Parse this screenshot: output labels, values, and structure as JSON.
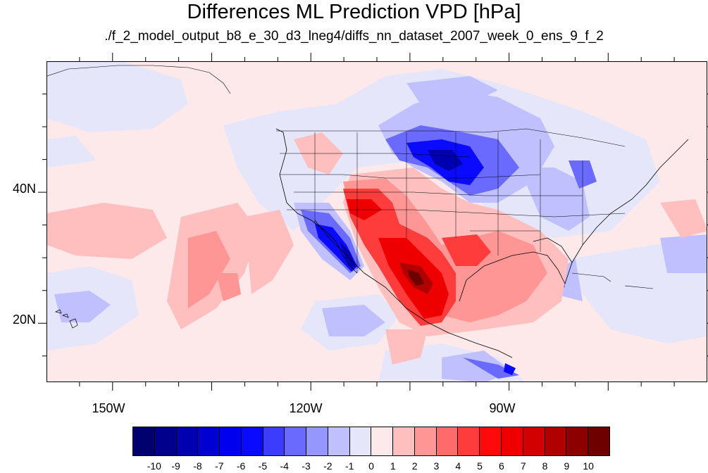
{
  "title": "Differences ML Prediction VPD [hPa]",
  "subtitle": "./f_2_model_output_b8_e_30_d3_lneg4/diffs_nn_dataset_2007_week_0_ens_9_f_2",
  "lon_labels": [
    "150W",
    "120W",
    "90W"
  ],
  "lat_labels": [
    "40N",
    "20N"
  ],
  "colorbar": {
    "labels": [
      "-10",
      "-9",
      "-8",
      "-7",
      "-6",
      "-5",
      "-4",
      "-3",
      "-2",
      "-1",
      "0",
      "1",
      "2",
      "3",
      "4",
      "5",
      "6",
      "7",
      "8",
      "9",
      "10"
    ],
    "colors": [
      "#00006e",
      "#00008c",
      "#0000b0",
      "#0000d2",
      "#0000ee",
      "#0a0aff",
      "#3c3cff",
      "#6a6aff",
      "#9696ff",
      "#c0c0ff",
      "#e6e6fb",
      "#fde8ea",
      "#ffbfbf",
      "#ff9696",
      "#ff6a6a",
      "#ff3c3c",
      "#ff0a0a",
      "#ee0000",
      "#d20000",
      "#b00000",
      "#8c0000",
      "#6e0000"
    ]
  },
  "map": {
    "projection": "cylindrical-equidistant",
    "lon_range": [
      -160,
      -60
    ],
    "lat_range": [
      11,
      60
    ],
    "major_lon_ticks": [
      -150,
      -120,
      -90
    ],
    "major_lat_ticks": [
      20,
      40
    ]
  }
}
